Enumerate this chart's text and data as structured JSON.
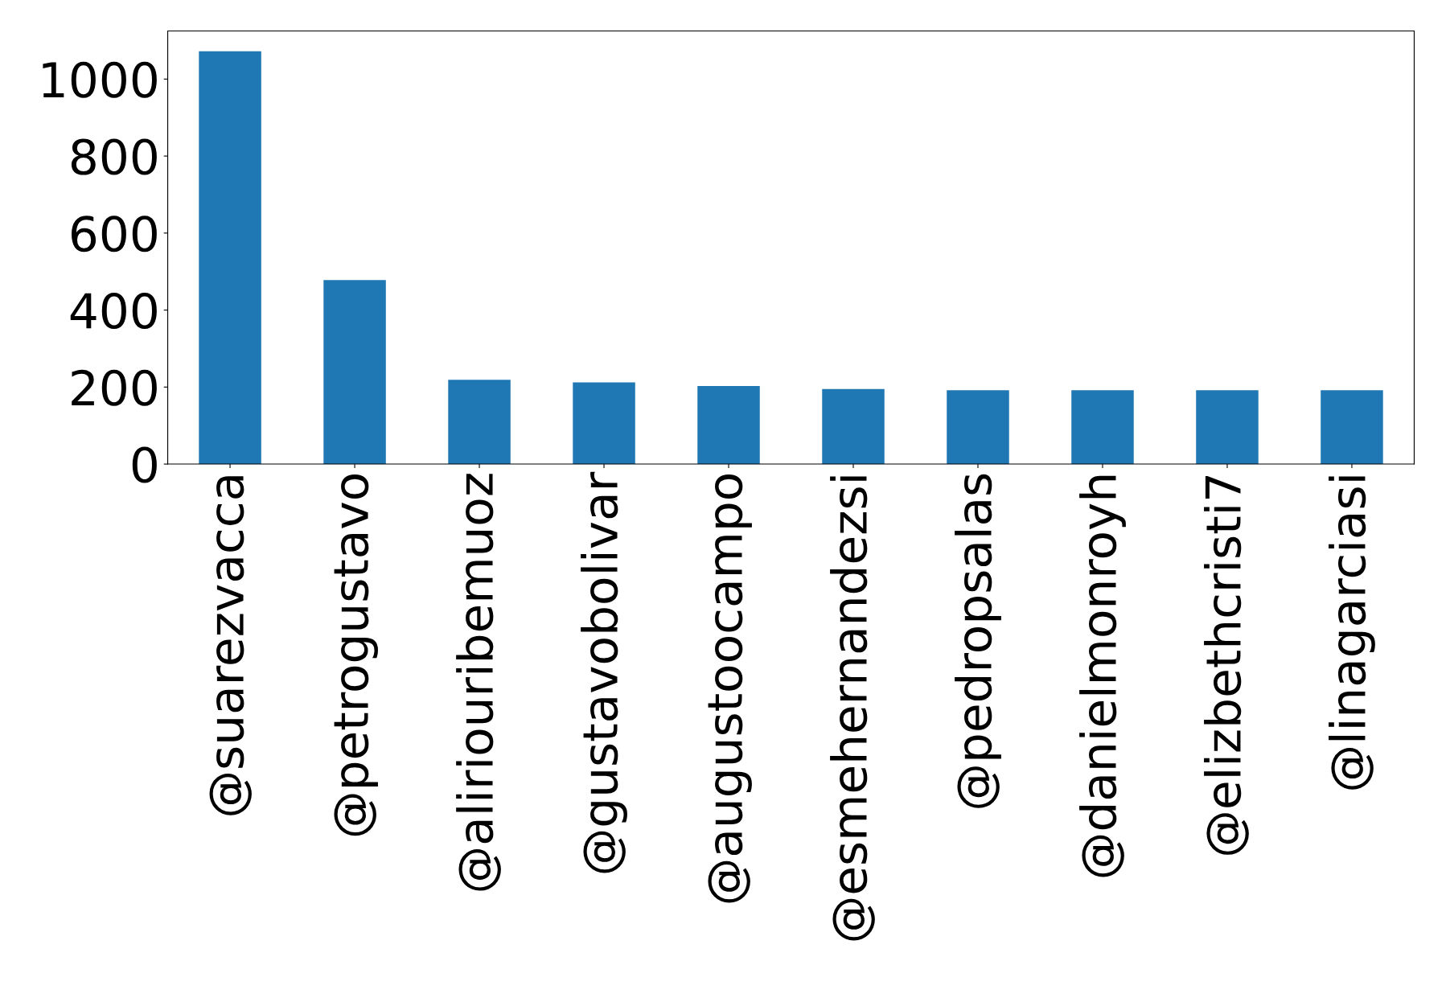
{
  "chart_data": {
    "type": "bar",
    "categories": [
      "@suarezvacca",
      "@petrogustavo",
      "@aliriouribemuoz",
      "@gustavobolivar",
      "@augustoocampo",
      "@esmehernandezsi",
      "@pedropsalas",
      "@danielmonroyh",
      "@elizbethcristi7",
      "@linagarciasi"
    ],
    "values": [
      1072,
      478,
      219,
      212,
      203,
      195,
      192,
      192,
      192,
      192
    ],
    "color": "#1f77b4",
    "ylim": [
      0,
      1125
    ],
    "yticks": [
      0,
      200,
      400,
      600,
      800,
      1000
    ],
    "grid": false,
    "legend": false
  }
}
